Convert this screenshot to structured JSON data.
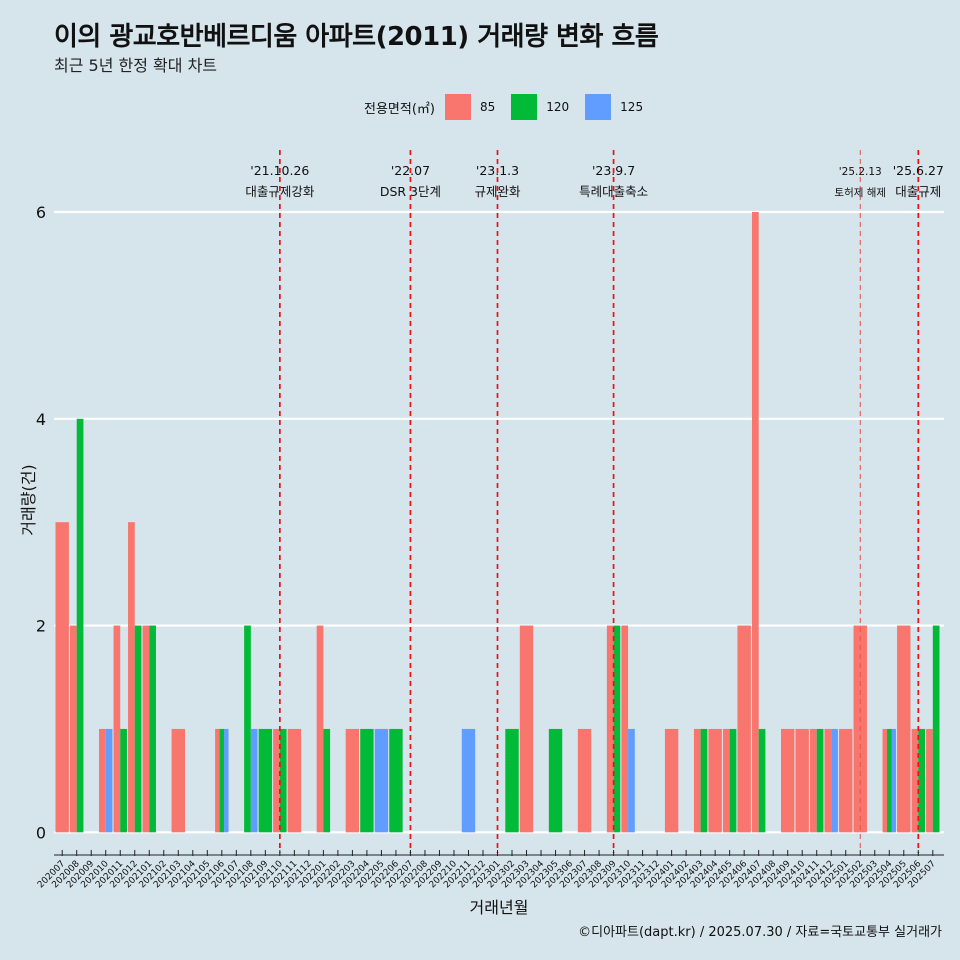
{
  "chart_data": {
    "type": "bar",
    "title": "이의 광교호반베르디움 아파트(2011) 거래량 변화 흐름",
    "subtitle": "최근 5년 한정 확대 차트",
    "xlabel": "거래년월",
    "ylabel": "거래량(건)",
    "ylim": [
      -0.2,
      6.6
    ],
    "yticks": [
      0,
      2,
      4,
      6
    ],
    "grid": "horizontal",
    "legend_title": "전용면적(㎡)",
    "legend_position": "top",
    "caption": "©디아파트(dapt.kr) / 2025.07.30 / 자료=국토교통부 실거래가",
    "categories": [
      "202007",
      "202008",
      "202009",
      "202010",
      "202011",
      "202012",
      "202101",
      "202102",
      "202103",
      "202104",
      "202105",
      "202106",
      "202107",
      "202108",
      "202109",
      "202110",
      "202111",
      "202112",
      "202201",
      "202202",
      "202203",
      "202204",
      "202205",
      "202206",
      "202207",
      "202208",
      "202209",
      "202210",
      "202211",
      "202212",
      "202301",
      "202302",
      "202303",
      "202304",
      "202305",
      "202306",
      "202307",
      "202308",
      "202309",
      "202310",
      "202311",
      "202312",
      "202401",
      "202402",
      "202403",
      "202404",
      "202405",
      "202406",
      "202407",
      "202408",
      "202409",
      "202410",
      "202411",
      "202412",
      "202501",
      "202502",
      "202503",
      "202504",
      "202505",
      "202506",
      "202507"
    ],
    "series": [
      {
        "name": "85",
        "color": "#f8766d",
        "values": [
          3,
          2,
          0,
          1,
          2,
          3,
          2,
          0,
          1,
          0,
          0,
          1,
          0,
          0,
          0,
          1,
          1,
          0,
          2,
          0,
          1,
          0,
          0,
          0,
          0,
          0,
          0,
          0,
          0,
          0,
          0,
          0,
          2,
          0,
          0,
          0,
          1,
          0,
          2,
          2,
          0,
          0,
          1,
          0,
          1,
          1,
          1,
          2,
          6,
          0,
          1,
          1,
          1,
          1,
          1,
          2,
          0,
          1,
          2,
          1,
          1
        ]
      },
      {
        "name": "120",
        "color": "#00ba38",
        "values": [
          0,
          4,
          0,
          0,
          1,
          2,
          2,
          0,
          0,
          0,
          0,
          1,
          0,
          2,
          1,
          1,
          0,
          0,
          1,
          0,
          0,
          1,
          0,
          1,
          0,
          0,
          0,
          0,
          0,
          0,
          0,
          1,
          0,
          0,
          1,
          0,
          0,
          0,
          2,
          0,
          0,
          0,
          0,
          0,
          1,
          0,
          1,
          0,
          1,
          0,
          0,
          0,
          1,
          0,
          0,
          0,
          0,
          1,
          0,
          1,
          2
        ]
      },
      {
        "name": "125",
        "color": "#619cff",
        "values": [
          0,
          0,
          0,
          1,
          0,
          0,
          0,
          0,
          0,
          0,
          0,
          1,
          0,
          1,
          0,
          0,
          0,
          0,
          0,
          0,
          0,
          0,
          1,
          0,
          0,
          0,
          0,
          0,
          1,
          0,
          0,
          0,
          0,
          0,
          0,
          0,
          0,
          0,
          0,
          1,
          0,
          0,
          0,
          0,
          0,
          0,
          0,
          0,
          0,
          0,
          0,
          0,
          0,
          1,
          0,
          0,
          0,
          1,
          0,
          0,
          0
        ]
      }
    ],
    "annotations": [
      {
        "x": "202110",
        "date": "'21.10.26",
        "label": "대출규제강화"
      },
      {
        "x": "202207",
        "date": "'22.07",
        "label": "DSR 3단계"
      },
      {
        "x": "202301",
        "date": "'23.1.3",
        "label": "규제완화"
      },
      {
        "x": "202309",
        "date": "'23.9.7",
        "label": "특례대출축소"
      },
      {
        "x": "202502",
        "date": "'25.2.13",
        "label": "토허제 해제"
      },
      {
        "x": "202506",
        "date": "'25.6.27",
        "label": "대출규제"
      }
    ]
  }
}
